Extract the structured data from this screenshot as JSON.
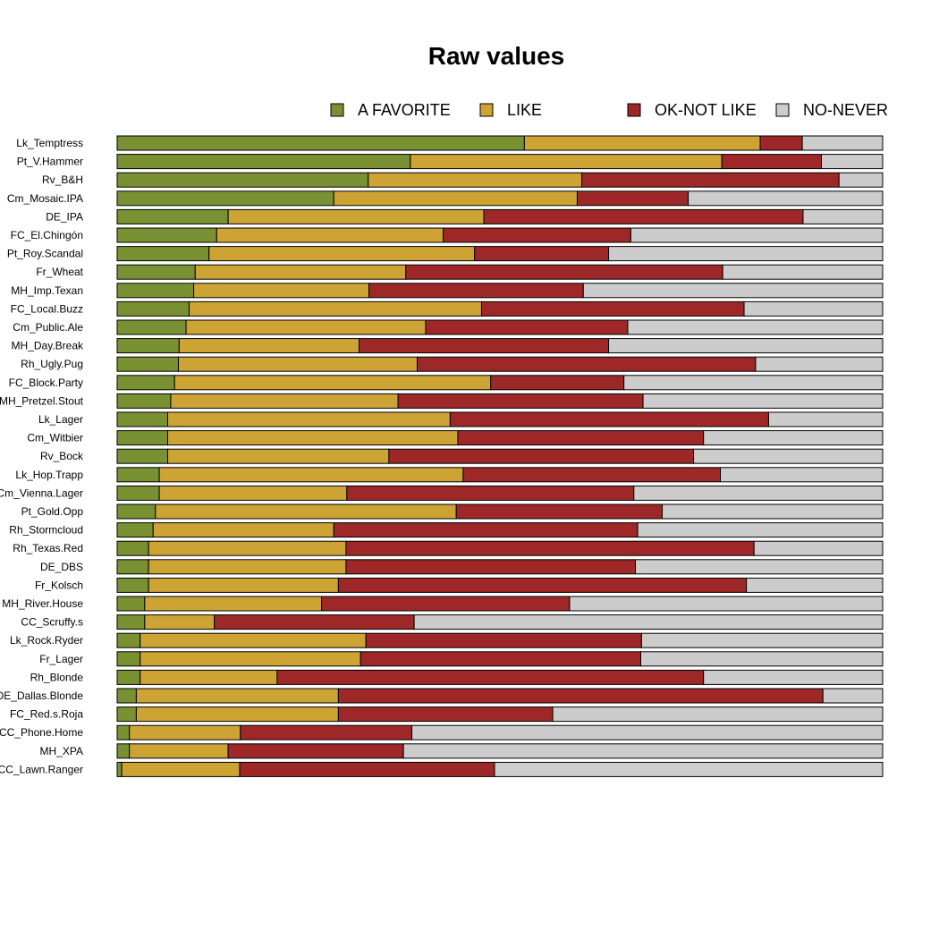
{
  "chart_data": {
    "type": "bar",
    "orientation": "horizontal",
    "stacked": "proportional",
    "title": "Raw values",
    "legend_position": "top",
    "categories": [
      "Lk_Temptress",
      "Pt_V.Hammer",
      "Rv_B&H",
      "Cm_Mosaic.IPA",
      "DE_IPA",
      "FC_El.Chingón",
      "Pt_Roy.Scandal",
      "Fr_Wheat",
      "MH_Imp.Texan",
      "FC_Local.Buzz",
      "Cm_Public.Ale",
      "MH_Day.Break",
      "Rh_Ugly.Pug",
      "FC_Block.Party",
      "MH_Pretzel.Stout",
      "Lk_Lager",
      "Cm_Witbier",
      "Rv_Bock",
      "Lk_Hop.Trapp",
      "Cm_Vienna.Lager",
      "Pt_Gold.Opp",
      "Rh_Stormcloud",
      "Rh_Texas.Red",
      "DE_DBS",
      "Fr_Kolsch",
      "MH_River.House",
      "CC_Scruffy.s",
      "Lk_Rock.Ryder",
      "Fr_Lager",
      "Rh_Blonde",
      "DE_Dallas.Blonde",
      "FC_Red.s.Roja",
      "CC_Phone.Home",
      "MH_XPA",
      "CC_Lawn.Ranger"
    ],
    "series": [
      {
        "name": "A FAVORITE",
        "color": "#7a9133",
        "values": [
          53.2,
          38.3,
          32.8,
          28.3,
          14.5,
          13.0,
          12.0,
          10.2,
          10.0,
          9.4,
          9.0,
          8.1,
          8.0,
          7.5,
          7.0,
          6.6,
          6.6,
          6.6,
          5.5,
          5.5,
          5.0,
          4.7,
          4.1,
          4.1,
          4.1,
          3.6,
          3.6,
          3.0,
          3.0,
          3.0,
          2.5,
          2.5,
          1.6,
          1.6,
          0.6
        ]
      },
      {
        "name": "LIKE",
        "color": "#cda434",
        "values": [
          30.8,
          40.7,
          27.9,
          31.8,
          33.4,
          29.6,
          34.7,
          27.5,
          22.9,
          38.2,
          31.3,
          23.5,
          31.2,
          41.3,
          29.7,
          36.9,
          37.9,
          28.9,
          39.7,
          24.5,
          39.3,
          23.6,
          25.8,
          25.8,
          24.8,
          23.1,
          9.1,
          29.5,
          28.8,
          17.9,
          26.4,
          26.4,
          14.5,
          12.9,
          15.4
        ]
      },
      {
        "name": "OK-NOT LIKE",
        "color": "#9e2828",
        "values": [
          5.5,
          13.0,
          33.6,
          14.5,
          41.7,
          24.5,
          17.5,
          41.4,
          28.0,
          34.3,
          26.4,
          32.6,
          44.2,
          17.4,
          32.0,
          41.6,
          32.1,
          39.8,
          33.6,
          37.5,
          26.9,
          39.7,
          53.3,
          37.8,
          53.3,
          32.4,
          26.1,
          36.0,
          36.6,
          55.7,
          63.3,
          28.0,
          22.4,
          22.9,
          33.3
        ]
      },
      {
        "name": "NO-NEVER",
        "color": "#cccccc",
        "values": [
          10.5,
          8.0,
          5.7,
          25.4,
          10.4,
          32.9,
          35.8,
          20.9,
          39.1,
          18.1,
          33.3,
          35.8,
          16.6,
          33.8,
          31.3,
          14.9,
          23.4,
          24.7,
          21.2,
          32.5,
          28.8,
          32.0,
          16.8,
          32.3,
          17.8,
          40.9,
          61.2,
          31.5,
          31.6,
          23.4,
          7.8,
          43.1,
          61.5,
          62.6,
          50.7
        ]
      }
    ],
    "xlim": [
      0,
      100
    ],
    "grid": false
  }
}
